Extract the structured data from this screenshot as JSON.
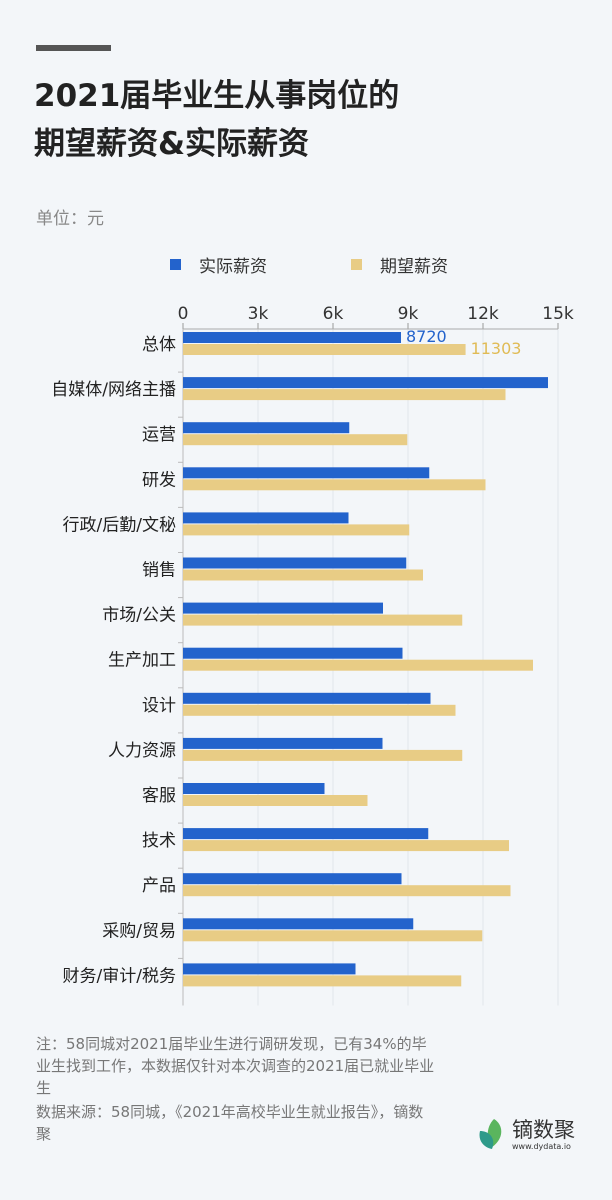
{
  "title_lines": [
    "2021届毕业生从事岗位的",
    "期望薪资&实际薪资"
  ],
  "unit": "单位：元",
  "note": "注：58同城对2021届毕业生进行调研发现，已有34%的毕业生找到工作，本数据仅针对本次调查的2021届已就业毕业生",
  "source": "数据来源：58同城，《2021年高校毕业生就业报告》，镝数聚",
  "logo": {
    "name": "镝数聚",
    "url": "www.dydata.io"
  },
  "colors": {
    "actual": "#2363cc",
    "expected": "#e8cc85",
    "background": "#f3f6f9"
  },
  "chart_data": {
    "type": "bar",
    "orientation": "horizontal",
    "categories": [
      "总体",
      "自媒体/网络主播",
      "运营",
      "研发",
      "行政/后勤/文秘",
      "销售",
      "市场/公关",
      "生产加工",
      "设计",
      "人力资源",
      "客服",
      "技术",
      "产品",
      "采购/贸易",
      "财务/审计/税务"
    ],
    "series": [
      {
        "name": "实际薪资",
        "values": [
          8720,
          14600,
          6650,
          9850,
          6620,
          8930,
          8000,
          8780,
          9900,
          7980,
          5660,
          9810,
          8740,
          9210,
          6900
        ]
      },
      {
        "name": "期望薪资",
        "values": [
          11303,
          12900,
          8970,
          12100,
          9050,
          9600,
          11170,
          14000,
          10900,
          11170,
          7380,
          13040,
          13100,
          11970,
          11130
        ]
      }
    ],
    "data_labels": {
      "总体": [
        "8720",
        "11303"
      ]
    },
    "xlim": [
      0,
      15000
    ],
    "xticks": [
      0,
      3000,
      6000,
      9000,
      12000,
      15000
    ],
    "xtick_labels": [
      "0",
      "3k",
      "6k",
      "9k",
      "12k",
      "15k"
    ],
    "axis_position": "top",
    "grid": true,
    "legend_placement": "top"
  }
}
